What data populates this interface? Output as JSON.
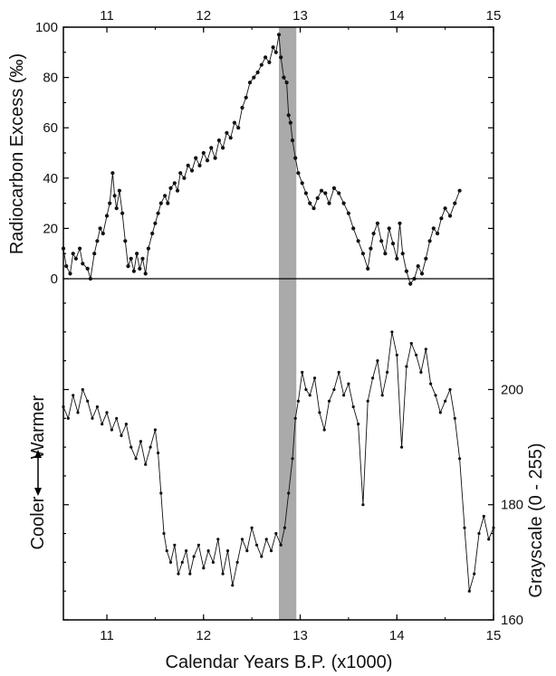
{
  "chart_data": [
    {
      "type": "line",
      "panel": "top",
      "ylabel": "Radiocarbon Excess  (‰)",
      "xlim": [
        10.55,
        15.0
      ],
      "ylim": [
        0,
        100
      ],
      "x_ticks_top": [
        "11",
        "12",
        "13",
        "14",
        "15"
      ],
      "y_ticks": [
        "0",
        "20",
        "40",
        "60",
        "80",
        "100"
      ],
      "series": [
        {
          "points": [
            [
              10.55,
              12
            ],
            [
              10.58,
              5
            ],
            [
              10.62,
              2
            ],
            [
              10.65,
              10
            ],
            [
              10.68,
              8
            ],
            [
              10.72,
              12
            ],
            [
              10.75,
              6
            ],
            [
              10.8,
              4
            ],
            [
              10.83,
              0
            ],
            [
              10.87,
              10
            ],
            [
              10.9,
              15
            ],
            [
              10.93,
              20
            ],
            [
              10.96,
              18
            ],
            [
              11.0,
              25
            ],
            [
              11.03,
              30
            ],
            [
              11.06,
              42
            ],
            [
              11.08,
              33
            ],
            [
              11.1,
              28
            ],
            [
              11.13,
              35
            ],
            [
              11.16,
              26
            ],
            [
              11.19,
              15
            ],
            [
              11.22,
              5
            ],
            [
              11.25,
              8
            ],
            [
              11.28,
              3
            ],
            [
              11.31,
              10
            ],
            [
              11.34,
              4
            ],
            [
              11.37,
              8
            ],
            [
              11.4,
              2
            ],
            [
              11.43,
              12
            ],
            [
              11.47,
              18
            ],
            [
              11.5,
              22
            ],
            [
              11.53,
              26
            ],
            [
              11.56,
              30
            ],
            [
              11.6,
              33
            ],
            [
              11.63,
              30
            ],
            [
              11.66,
              36
            ],
            [
              11.7,
              38
            ],
            [
              11.73,
              35
            ],
            [
              11.76,
              42
            ],
            [
              11.8,
              40
            ],
            [
              11.84,
              45
            ],
            [
              11.88,
              43
            ],
            [
              11.92,
              48
            ],
            [
              11.96,
              45
            ],
            [
              12.0,
              50
            ],
            [
              12.04,
              47
            ],
            [
              12.08,
              52
            ],
            [
              12.12,
              48
            ],
            [
              12.16,
              55
            ],
            [
              12.2,
              52
            ],
            [
              12.24,
              58
            ],
            [
              12.28,
              56
            ],
            [
              12.32,
              62
            ],
            [
              12.36,
              60
            ],
            [
              12.4,
              68
            ],
            [
              12.44,
              72
            ],
            [
              12.48,
              78
            ],
            [
              12.52,
              80
            ],
            [
              12.56,
              82
            ],
            [
              12.6,
              85
            ],
            [
              12.64,
              88
            ],
            [
              12.68,
              86
            ],
            [
              12.72,
              92
            ],
            [
              12.75,
              90
            ],
            [
              12.78,
              97
            ],
            [
              12.8,
              88
            ],
            [
              12.83,
              80
            ],
            [
              12.86,
              78
            ],
            [
              12.88,
              65
            ],
            [
              12.9,
              62
            ],
            [
              12.92,
              55
            ],
            [
              12.95,
              48
            ],
            [
              12.98,
              42
            ],
            [
              13.02,
              38
            ],
            [
              13.06,
              34
            ],
            [
              13.1,
              30
            ],
            [
              13.14,
              28
            ],
            [
              13.18,
              32
            ],
            [
              13.22,
              35
            ],
            [
              13.26,
              34
            ],
            [
              13.3,
              30
            ],
            [
              13.35,
              36
            ],
            [
              13.4,
              34
            ],
            [
              13.45,
              30
            ],
            [
              13.5,
              26
            ],
            [
              13.55,
              20
            ],
            [
              13.6,
              15
            ],
            [
              13.65,
              10
            ],
            [
              13.7,
              4
            ],
            [
              13.73,
              12
            ],
            [
              13.76,
              18
            ],
            [
              13.8,
              22
            ],
            [
              13.84,
              15
            ],
            [
              13.88,
              10
            ],
            [
              13.92,
              20
            ],
            [
              13.96,
              14
            ],
            [
              14.0,
              8
            ],
            [
              14.03,
              22
            ],
            [
              14.06,
              10
            ],
            [
              14.1,
              3
            ],
            [
              14.14,
              -2
            ],
            [
              14.18,
              0
            ],
            [
              14.22,
              5
            ],
            [
              14.26,
              2
            ],
            [
              14.3,
              8
            ],
            [
              14.34,
              15
            ],
            [
              14.38,
              20
            ],
            [
              14.42,
              18
            ],
            [
              14.46,
              24
            ],
            [
              14.5,
              28
            ],
            [
              14.55,
              25
            ],
            [
              14.6,
              30
            ],
            [
              14.65,
              35
            ]
          ]
        }
      ]
    },
    {
      "type": "line",
      "panel": "bottom",
      "xlabel": "Calendar Years B.P.  (x1000)",
      "ylabel": "Grayscale  (0 - 255)",
      "annotation_left": "Cooler",
      "annotation_right": "Warmer",
      "xlim": [
        10.55,
        15.0
      ],
      "ylim": [
        160,
        215
      ],
      "x_ticks_bottom": [
        "11",
        "12",
        "13",
        "14",
        "15"
      ],
      "y_ticks": [
        "160",
        "180",
        "200"
      ],
      "series": [
        {
          "points": [
            [
              10.55,
              197
            ],
            [
              10.6,
              195
            ],
            [
              10.65,
              199
            ],
            [
              10.7,
              196
            ],
            [
              10.75,
              200
            ],
            [
              10.8,
              198
            ],
            [
              10.85,
              195
            ],
            [
              10.9,
              197
            ],
            [
              10.95,
              194
            ],
            [
              11.0,
              196
            ],
            [
              11.05,
              193
            ],
            [
              11.1,
              195
            ],
            [
              11.15,
              192
            ],
            [
              11.2,
              194
            ],
            [
              11.25,
              190
            ],
            [
              11.3,
              188
            ],
            [
              11.35,
              191
            ],
            [
              11.4,
              187
            ],
            [
              11.45,
              190
            ],
            [
              11.5,
              193
            ],
            [
              11.53,
              189
            ],
            [
              11.56,
              182
            ],
            [
              11.59,
              175
            ],
            [
              11.62,
              172
            ],
            [
              11.66,
              170
            ],
            [
              11.7,
              173
            ],
            [
              11.74,
              168
            ],
            [
              11.78,
              170
            ],
            [
              11.82,
              172
            ],
            [
              11.86,
              168
            ],
            [
              11.9,
              171
            ],
            [
              11.95,
              173
            ],
            [
              12.0,
              169
            ],
            [
              12.05,
              172
            ],
            [
              12.1,
              170
            ],
            [
              12.15,
              174
            ],
            [
              12.2,
              168
            ],
            [
              12.25,
              172
            ],
            [
              12.3,
              166
            ],
            [
              12.35,
              170
            ],
            [
              12.4,
              174
            ],
            [
              12.45,
              172
            ],
            [
              12.5,
              176
            ],
            [
              12.55,
              173
            ],
            [
              12.6,
              171
            ],
            [
              12.65,
              174
            ],
            [
              12.7,
              172
            ],
            [
              12.75,
              175
            ],
            [
              12.8,
              173
            ],
            [
              12.84,
              176
            ],
            [
              12.88,
              182
            ],
            [
              12.92,
              188
            ],
            [
              12.95,
              195
            ],
            [
              12.98,
              198
            ],
            [
              13.02,
              203
            ],
            [
              13.06,
              200
            ],
            [
              13.1,
              199
            ],
            [
              13.15,
              202
            ],
            [
              13.2,
              196
            ],
            [
              13.25,
              193
            ],
            [
              13.3,
              198
            ],
            [
              13.35,
              200
            ],
            [
              13.4,
              203
            ],
            [
              13.45,
              199
            ],
            [
              13.5,
              201
            ],
            [
              13.55,
              197
            ],
            [
              13.6,
              194
            ],
            [
              13.65,
              180
            ],
            [
              13.7,
              198
            ],
            [
              13.75,
              202
            ],
            [
              13.8,
              205
            ],
            [
              13.85,
              199
            ],
            [
              13.9,
              203
            ],
            [
              13.95,
              210
            ],
            [
              14.0,
              206
            ],
            [
              14.05,
              190
            ],
            [
              14.1,
              204
            ],
            [
              14.15,
              208
            ],
            [
              14.2,
              206
            ],
            [
              14.25,
              203
            ],
            [
              14.3,
              207
            ],
            [
              14.35,
              201
            ],
            [
              14.4,
              199
            ],
            [
              14.45,
              196
            ],
            [
              14.5,
              198
            ],
            [
              14.55,
              200
            ],
            [
              14.6,
              195
            ],
            [
              14.65,
              188
            ],
            [
              14.7,
              176
            ],
            [
              14.75,
              165
            ],
            [
              14.8,
              168
            ],
            [
              14.85,
              175
            ],
            [
              14.9,
              178
            ],
            [
              14.95,
              174
            ],
            [
              15.0,
              176
            ]
          ]
        }
      ]
    }
  ],
  "shaded_band": {
    "x_from": 12.78,
    "x_to": 12.96,
    "color": "#aaaaaa"
  },
  "colors": {
    "line": "#111111",
    "axis": "#000000",
    "band": "#aaaaaa"
  }
}
